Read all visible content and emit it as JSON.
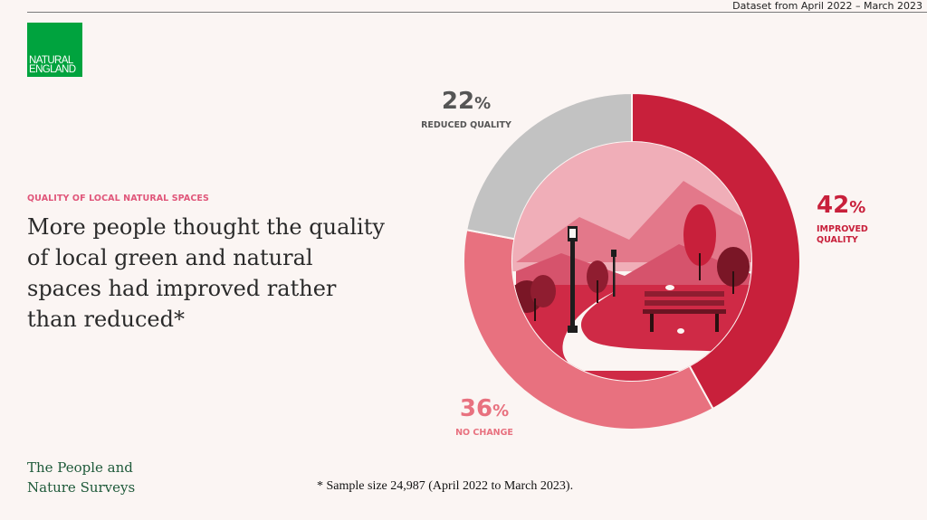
{
  "header": {
    "dataset_note": "Dataset from April 2022 – March 2023"
  },
  "logo": {
    "line1": "NATURAL",
    "line2": "ENGLAND"
  },
  "kicker": "QUALITY OF LOCAL NATURAL SPACES",
  "headline": "More people thought the quality of local green and natural spaces had improved rather than reduced*",
  "brand": {
    "line1": "The People and",
    "line2": "Nature Surveys"
  },
  "footnote": "* Sample size 24,987 (April 2022 to March 2023).",
  "colors": {
    "improved": "#c8203b",
    "no_change": "#e8717f",
    "reduced": "#c2c2c2",
    "brand_green": "#00a33e",
    "kicker": "#e0567a"
  },
  "chart_data": {
    "type": "pie",
    "variant": "donut",
    "categories": [
      "IMPROVED QUALITY",
      "NO CHANGE",
      "REDUCED QUALITY"
    ],
    "values": [
      42,
      36,
      22
    ],
    "unit": "%",
    "labels": [
      {
        "value": "42",
        "sign": "%",
        "text": [
          "IMPROVED",
          "QUALITY"
        ]
      },
      {
        "value": "36",
        "sign": "%",
        "text": [
          "NO CHANGE"
        ]
      },
      {
        "value": "22",
        "sign": "%",
        "text": [
          "REDUCED QUALITY"
        ]
      }
    ],
    "center_illustration": "park-scene"
  }
}
